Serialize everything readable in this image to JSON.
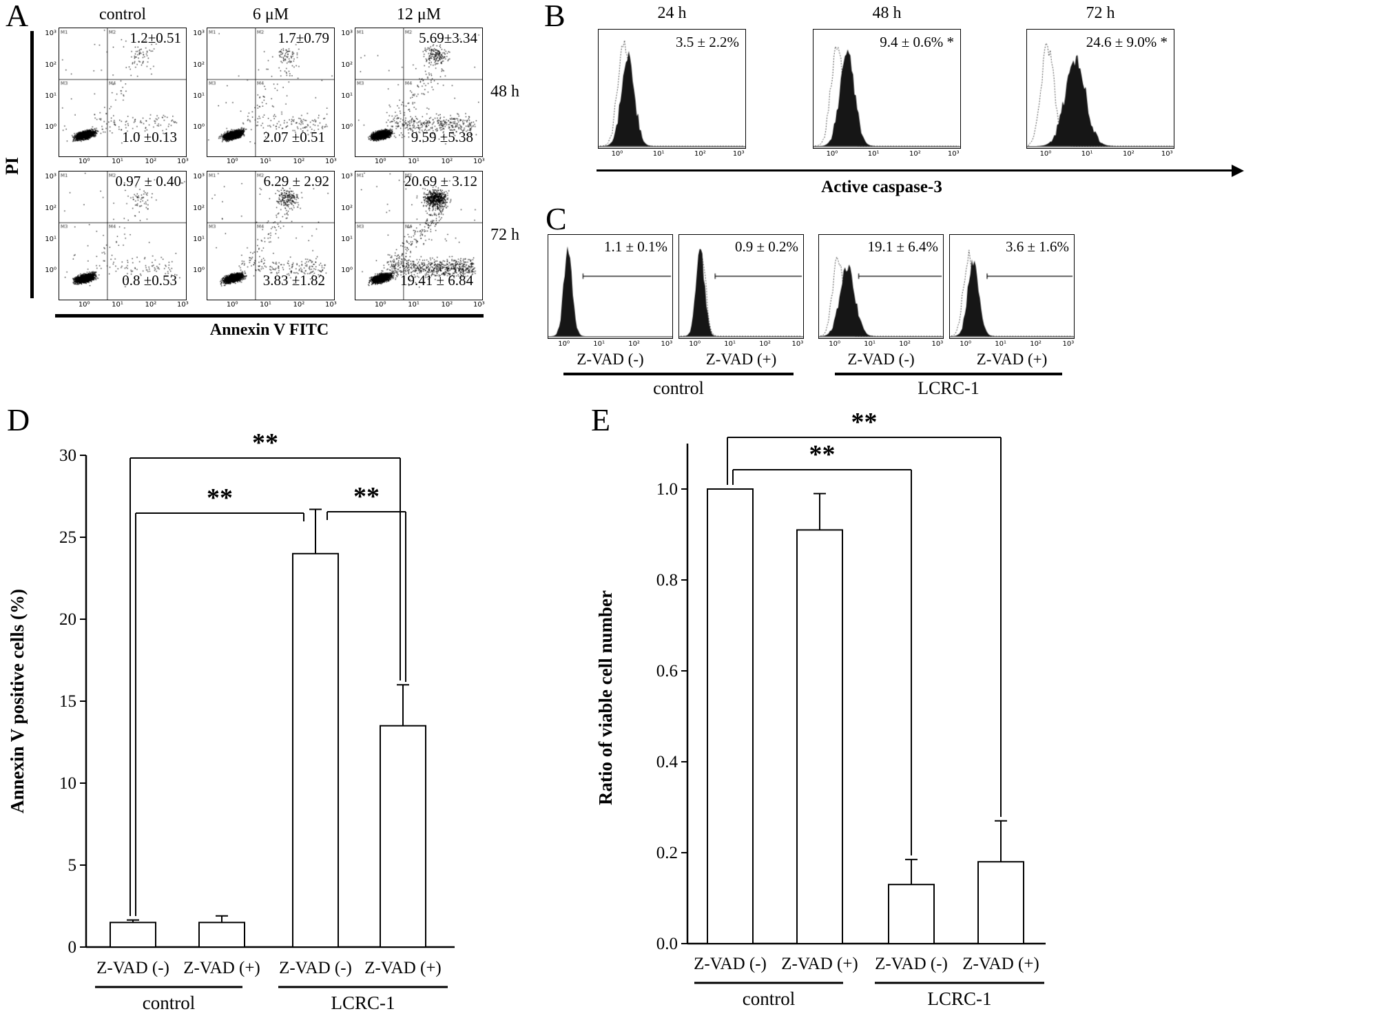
{
  "panelA": {
    "label": "A",
    "col_headers": [
      "control",
      "6 μM",
      "12 μM"
    ],
    "row_labels": [
      "48 h",
      "72 h"
    ],
    "y_axis_label": "PI",
    "x_axis_label": "Annexin V  FITC",
    "x_ticks": [
      "10⁰",
      "10¹",
      "10²",
      "10³"
    ],
    "y_ticks": [
      "10³",
      "10²",
      "10¹",
      "10⁰"
    ],
    "quadrant_markers": [
      "M1",
      "M2",
      "M3",
      "M4"
    ],
    "plots": [
      {
        "row": 0,
        "col": 0,
        "upper": "1.2±0.51",
        "lower": "1.0 ±0.13",
        "upper_num": 1.2,
        "lower_num": 1.0
      },
      {
        "row": 0,
        "col": 1,
        "upper": "1.7±0.79",
        "lower": "2.07 ±0.51",
        "upper_num": 1.7,
        "lower_num": 2.07
      },
      {
        "row": 0,
        "col": 2,
        "upper": "5.69±3.34",
        "lower": "9.59 ±5.38",
        "upper_num": 5.69,
        "lower_num": 9.59
      },
      {
        "row": 1,
        "col": 0,
        "upper": "0.97 ± 0.40",
        "lower": "0.8 ±0.53",
        "upper_num": 0.97,
        "lower_num": 0.8
      },
      {
        "row": 1,
        "col": 1,
        "upper": "6.29 ± 2.92",
        "lower": "3.83 ±1.82",
        "upper_num": 6.29,
        "lower_num": 3.83
      },
      {
        "row": 1,
        "col": 2,
        "upper": "20.69 ± 3.12",
        "lower": "19.41 ± 6.84",
        "upper_num": 20.69,
        "lower_num": 19.41
      }
    ]
  },
  "panelB": {
    "label": "B",
    "x_axis_label": "Active caspase-3",
    "x_ticks": [
      "10⁰",
      "10¹",
      "10²",
      "10³"
    ],
    "plots": [
      {
        "header": "24 h",
        "value": "3.5 ± 2.2%",
        "filled_center": 0.2,
        "filled_sigma": 0.045,
        "filled_amp": 0.88,
        "dotted_center": 0.17,
        "dotted_sigma": 0.04,
        "dotted_amp": 0.97
      },
      {
        "header": "48 h",
        "value": "9.4 ± 0.6% *",
        "filled_center": 0.23,
        "filled_sigma": 0.05,
        "filled_amp": 0.9,
        "dotted_center": 0.16,
        "dotted_sigma": 0.04,
        "dotted_amp": 0.97
      },
      {
        "header": "72 h",
        "value": "24.6 ± 9.0% *",
        "filled_center": 0.33,
        "filled_sigma": 0.07,
        "filled_amp": 0.84,
        "dotted_center": 0.14,
        "dotted_sigma": 0.045,
        "dotted_amp": 0.95
      }
    ]
  },
  "panelC": {
    "label": "C",
    "x_ticks": [
      "10⁰",
      "10¹",
      "10²",
      "10³"
    ],
    "sub_labels": [
      "Z-VAD (-)",
      "Z-VAD (+)",
      "Z-VAD (-)",
      "Z-VAD (+)"
    ],
    "group_labels": [
      "control",
      "LCRC-1"
    ],
    "plots": [
      {
        "value": "1.1 ± 0.1%",
        "filled_center": 0.16,
        "filled_sigma": 0.035,
        "filled_amp": 0.96,
        "dotted_center": null,
        "dotted_sigma": 0,
        "dotted_amp": 0,
        "marker": true,
        "marker_x": 0.28,
        "marker_y": 0.4
      },
      {
        "value": "0.9 ± 0.2%",
        "filled_center": 0.17,
        "filled_sigma": 0.035,
        "filled_amp": 0.97,
        "dotted_center": 0.18,
        "dotted_sigma": 0.035,
        "dotted_amp": 0.9,
        "marker": true,
        "marker_x": 0.29,
        "marker_y": 0.4
      },
      {
        "value": "19.1 ± 6.4%",
        "filled_center": 0.23,
        "filled_sigma": 0.06,
        "filled_amp": 0.8,
        "dotted_center": 0.15,
        "dotted_sigma": 0.04,
        "dotted_amp": 0.92,
        "marker": true,
        "marker_x": 0.32,
        "marker_y": 0.4
      },
      {
        "value": "3.6 ± 1.6%",
        "filled_center": 0.19,
        "filled_sigma": 0.045,
        "filled_amp": 0.86,
        "dotted_center": 0.15,
        "dotted_sigma": 0.04,
        "dotted_amp": 0.92,
        "marker": true,
        "marker_x": 0.3,
        "marker_y": 0.4
      }
    ]
  },
  "panelD": {
    "label": "D"
  },
  "panelE": {
    "label": "E"
  },
  "chart_data": [
    {
      "id": "D",
      "type": "bar",
      "ylabel": "Annexin V positive cells  (%)",
      "ylim": [
        0,
        30
      ],
      "yticks": [
        0,
        5,
        10,
        15,
        20,
        25,
        30
      ],
      "ytick_labels": [
        "0",
        "5",
        "10",
        "15",
        "20",
        "25",
        "30"
      ],
      "categories": [
        "Z-VAD (-)",
        "Z-VAD (+)",
        "Z-VAD (-)",
        "Z-VAD (+)"
      ],
      "groups": [
        {
          "label": "control"
        },
        {
          "label": "LCRC-1"
        }
      ],
      "values": [
        1.5,
        1.5,
        24.0,
        13.5
      ],
      "errors": [
        0.15,
        0.4,
        2.7,
        2.5
      ],
      "significance": [
        {
          "from": 0,
          "to": 3,
          "label": "**"
        },
        {
          "from": 0,
          "to": 2,
          "label": "**"
        },
        {
          "from": 2,
          "to": 3,
          "label": "**"
        }
      ]
    },
    {
      "id": "E",
      "type": "bar",
      "ylabel": "Ratio of viable cell number",
      "ylim": [
        0,
        1.1
      ],
      "yticks": [
        0,
        0.2,
        0.4,
        0.6,
        0.8,
        1.0
      ],
      "ytick_labels": [
        "0.0",
        "0.2",
        "0.4",
        "0.6",
        "0.8",
        "1.0"
      ],
      "categories": [
        "Z-VAD (-)",
        "Z-VAD (+)",
        "Z-VAD (-)",
        "Z-VAD (+)"
      ],
      "groups": [
        {
          "label": "control"
        },
        {
          "label": "LCRC-1"
        }
      ],
      "values": [
        1.0,
        0.91,
        0.13,
        0.18
      ],
      "errors": [
        0,
        0.08,
        0.055,
        0.09
      ],
      "significance": [
        {
          "from": 0,
          "to": 3,
          "label": "**"
        },
        {
          "from": 0,
          "to": 2,
          "label": "**"
        }
      ]
    }
  ]
}
